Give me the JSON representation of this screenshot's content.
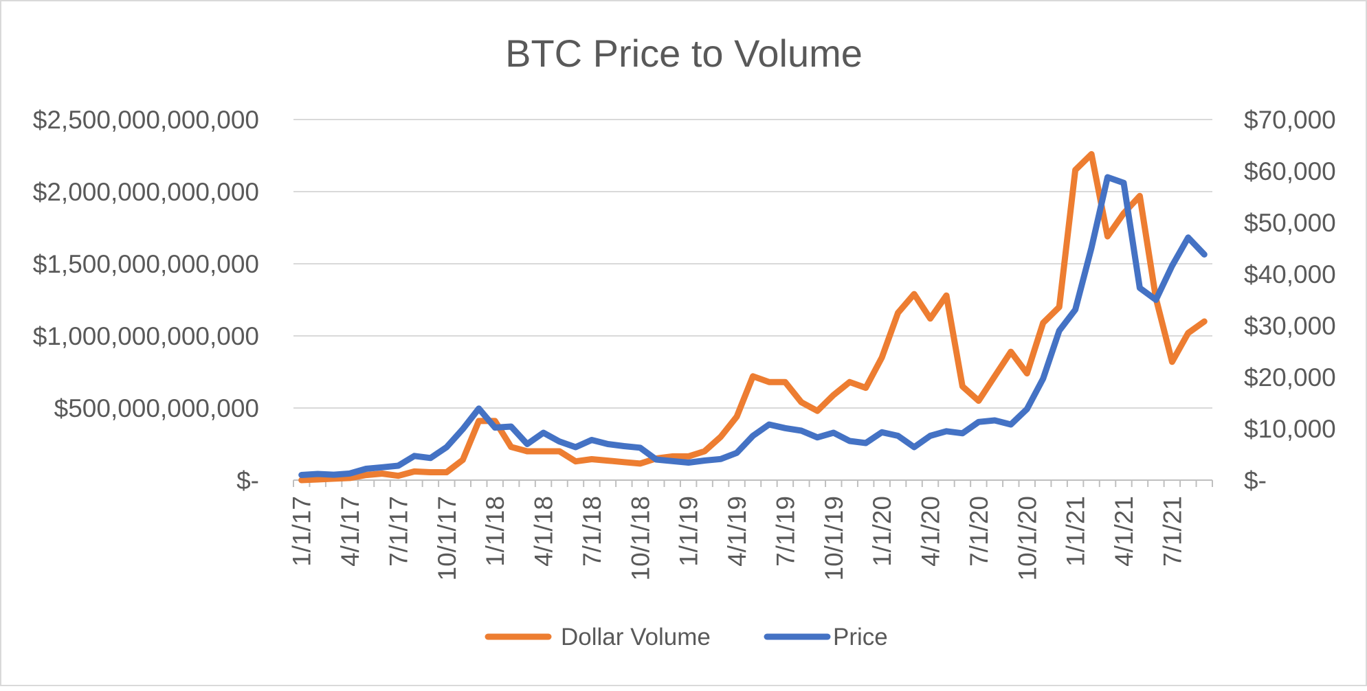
{
  "chart_data": {
    "type": "line",
    "title": "BTC Price to Volume",
    "xlabel": "",
    "ylabel": "",
    "y2label": "",
    "x": [
      "1/1/17",
      "2/1/17",
      "3/1/17",
      "4/1/17",
      "5/1/17",
      "6/1/17",
      "7/1/17",
      "8/1/17",
      "9/1/17",
      "10/1/17",
      "11/1/17",
      "12/1/17",
      "1/1/18",
      "2/1/18",
      "3/1/18",
      "4/1/18",
      "5/1/18",
      "6/1/18",
      "7/1/18",
      "8/1/18",
      "9/1/18",
      "10/1/18",
      "11/1/18",
      "12/1/18",
      "1/1/19",
      "2/1/19",
      "3/1/19",
      "4/1/19",
      "5/1/19",
      "6/1/19",
      "7/1/19",
      "8/1/19",
      "9/1/19",
      "10/1/19",
      "11/1/19",
      "12/1/19",
      "1/1/20",
      "2/1/20",
      "3/1/20",
      "4/1/20",
      "5/1/20",
      "6/1/20",
      "7/1/20",
      "8/1/20",
      "9/1/20",
      "10/1/20",
      "11/1/20",
      "12/1/20",
      "1/1/21",
      "2/1/21",
      "3/1/21",
      "4/1/21",
      "5/1/21",
      "6/1/21",
      "7/1/21",
      "8/1/21",
      "9/1/21"
    ],
    "x_tick_labels": [
      "1/1/17",
      "4/1/17",
      "7/1/17",
      "10/1/17",
      "1/1/18",
      "4/1/18",
      "7/1/18",
      "10/1/18",
      "1/1/19",
      "4/1/19",
      "7/1/19",
      "10/1/19",
      "1/1/20",
      "4/1/20",
      "7/1/20",
      "10/1/20",
      "1/1/21",
      "4/1/21",
      "7/1/21"
    ],
    "y_tick_labels": [
      "$-",
      "$500,000,000,000",
      "$1,000,000,000,000",
      "$1,500,000,000,000",
      "$2,000,000,000,000",
      "$2,500,000,000,000"
    ],
    "y2_tick_labels": [
      "$-",
      "$10,000",
      "$20,000",
      "$30,000",
      "$40,000",
      "$50,000",
      "$60,000",
      "$70,000"
    ],
    "ylim": [
      0,
      2500000000000
    ],
    "y2lim": [
      0,
      70000
    ],
    "grid": true,
    "legend_position": "bottom",
    "series": [
      {
        "name": "Dollar Volume",
        "axis": "left",
        "color": "#ED7D31",
        "values": [
          0,
          5000000000,
          10000000000,
          15000000000,
          35000000000,
          45000000000,
          30000000000,
          60000000000,
          55000000000,
          55000000000,
          140000000000,
          410000000000,
          410000000000,
          230000000000,
          200000000000,
          200000000000,
          200000000000,
          130000000000,
          145000000000,
          135000000000,
          125000000000,
          115000000000,
          150000000000,
          165000000000,
          165000000000,
          200000000000,
          300000000000,
          440000000000,
          720000000000,
          680000000000,
          680000000000,
          540000000000,
          480000000000,
          590000000000,
          680000000000,
          640000000000,
          850000000000,
          1160000000000,
          1290000000000,
          1120000000000,
          1280000000000,
          650000000000,
          550000000000,
          720000000000,
          890000000000,
          740000000000,
          1090000000000,
          1200000000000,
          2150000000000,
          2260000000000,
          1690000000000,
          1850000000000,
          1970000000000,
          1260000000000,
          820000000000,
          1020000000000,
          1100000000000
        ]
      },
      {
        "name": "Price",
        "axis": "right",
        "color": "#4472C4",
        "values": [
          1000,
          1200,
          1050,
          1300,
          2200,
          2500,
          2800,
          4700,
          4300,
          6400,
          9900,
          13900,
          10200,
          10400,
          7000,
          9200,
          7500,
          6400,
          7800,
          7000,
          6600,
          6300,
          4000,
          3700,
          3400,
          3800,
          4100,
          5300,
          8600,
          10800,
          10100,
          9600,
          8300,
          9200,
          7600,
          7200,
          9300,
          8600,
          6400,
          8600,
          9500,
          9100,
          11300,
          11600,
          10800,
          13800,
          19700,
          29000,
          33100,
          45100,
          58800,
          57700,
          37300,
          35000,
          41600,
          47100,
          43800
        ]
      }
    ]
  }
}
